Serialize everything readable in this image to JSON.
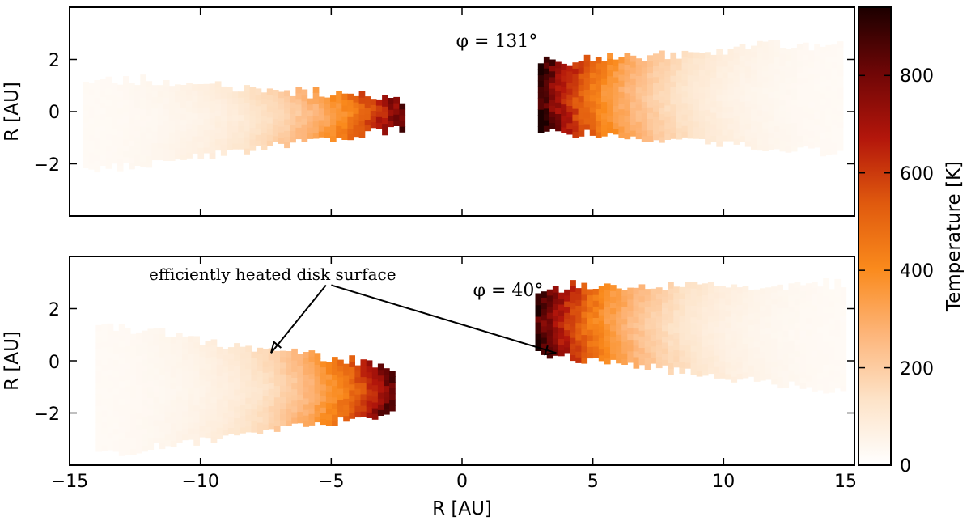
{
  "chart_data": {
    "type": "heatmap",
    "xlabel": "R [AU]",
    "xlim": [
      -15,
      15
    ],
    "xticks": [
      -15,
      -10,
      -5,
      0,
      5,
      10,
      15
    ],
    "xtick_labels": [
      "−15",
      "−10",
      "−5",
      "0",
      "5",
      "10",
      "15"
    ],
    "colorbar": {
      "label": "Temperature [K]",
      "range": [
        0,
        940
      ],
      "ticks": [
        0,
        200,
        400,
        600,
        800
      ],
      "tick_labels": [
        "0",
        "200",
        "400",
        "600",
        "800"
      ],
      "colormap": [
        "#ffffff",
        "#fde3c8",
        "#fdb57a",
        "#fa8a1c",
        "#e05a0e",
        "#b3160b",
        "#6f0606",
        "#1c0000"
      ]
    },
    "panels": [
      {
        "annotation": "φ = 131°",
        "ylabel": "R [AU]",
        "ylim": [
          -4,
          4
        ],
        "yticks": [
          -2,
          0,
          2
        ],
        "ytick_labels": [
          "−2",
          "0",
          "2"
        ],
        "regions": [
          {
            "side": "left",
            "x_range": [
              -14.5,
              -2.2
            ],
            "outer_top": 1.2,
            "outer_bottom": -2.3,
            "inner_top": 0.4,
            "inner_bottom": -0.6,
            "peak_temperature": 700
          },
          {
            "side": "right",
            "x_range": [
              2.9,
              14.5
            ],
            "outer_top": 2.6,
            "outer_bottom": -1.6,
            "inner_top": 1.8,
            "inner_bottom": -0.7,
            "peak_temperature": 720
          }
        ]
      },
      {
        "annotation": "φ = 40°",
        "ylabel": "R [AU]",
        "ylim": [
          -4,
          4
        ],
        "yticks": [
          -2,
          0,
          2
        ],
        "ytick_labels": [
          "−2",
          "0",
          "2"
        ],
        "label_text": "efficiently heated disk surface",
        "regions": [
          {
            "side": "left",
            "x_range": [
              -14,
              -2.7
            ],
            "outer_top": 1.3,
            "outer_bottom": -3.6,
            "inner_top": -0.4,
            "inner_bottom": -2.0,
            "peak_temperature": 700
          },
          {
            "side": "right",
            "x_range": [
              2.8,
              14.5
            ],
            "outer_top": 2.8,
            "outer_bottom": -1.2,
            "inner_top": 2.7,
            "inner_bottom": 0.3,
            "peak_temperature": 720
          }
        ],
        "arrows": [
          {
            "from": [
              -5.2,
              2.9
            ],
            "to": [
              -7.3,
              0.3
            ]
          },
          {
            "from": [
              -5.0,
              2.9
            ],
            "to": [
              3.6,
              0.3
            ]
          }
        ]
      }
    ]
  }
}
